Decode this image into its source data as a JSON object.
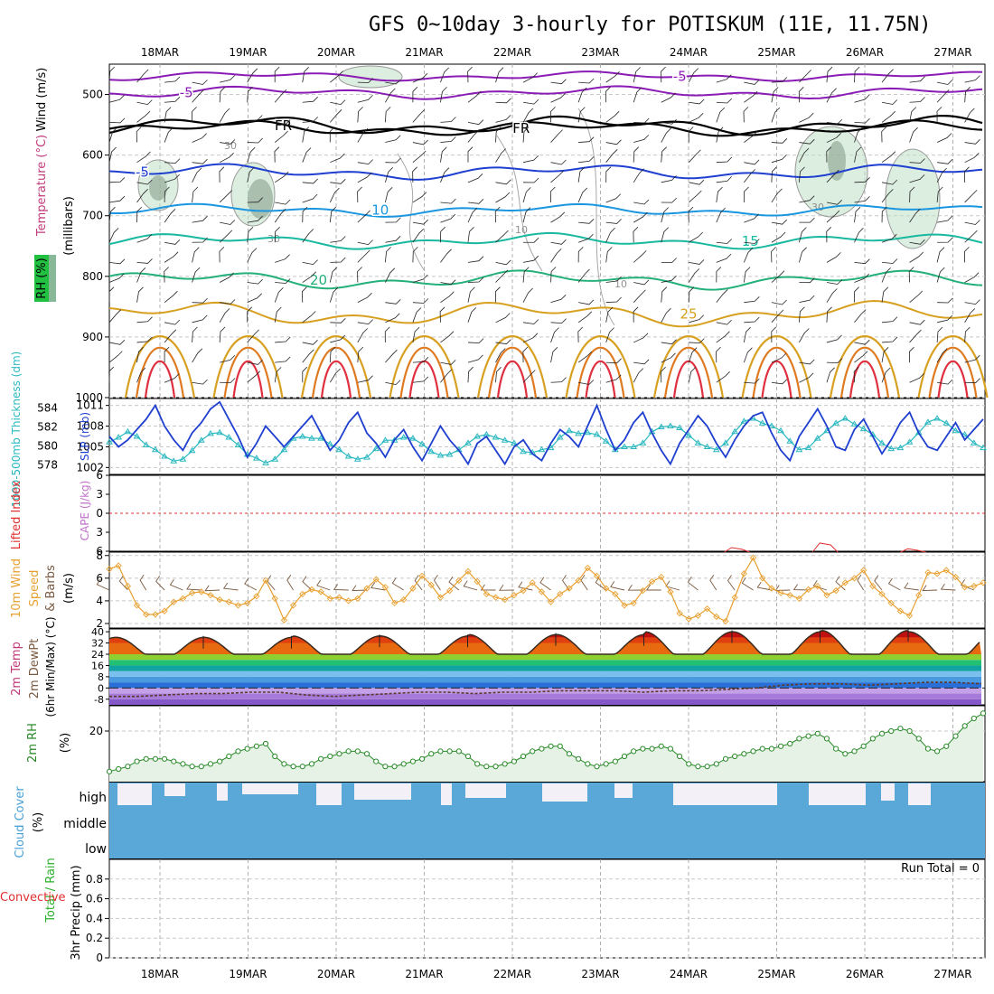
{
  "chart_data": {
    "type": "meteogram",
    "title": "GFS 0~10day 3-hourly for POTISKUM (11E, 11.75N)",
    "dates": [
      "18MAR",
      "19MAR",
      "20MAR",
      "21MAR",
      "22MAR",
      "23MAR",
      "24MAR",
      "25MAR",
      "26MAR",
      "27MAR"
    ],
    "panels": {
      "upper": {
        "ylabel_parts": [
          "Wind (m/s)",
          "Temperature (°C)",
          "RH (%)"
        ],
        "ylabel_unit": "(millibars)",
        "pressure_ticks": [
          500,
          600,
          700,
          800,
          900,
          1000
        ],
        "ylim": [
          450,
          1000
        ],
        "temperature_contours": [
          {
            "label": "-5",
            "base_p": 497,
            "amp": 4,
            "color": "#8a1bb5",
            "label_date": 0.3
          },
          {
            "label": "-5",
            "base_p": 470,
            "amp": 3,
            "color": "#8a1bb5",
            "label_date": 5.9
          },
          {
            "label": "FR",
            "base_p": 551,
            "amp": 6,
            "color": "#000000",
            "label_date": 1.4
          },
          {
            "label": "FR",
            "base_p": 556,
            "amp": 5,
            "color": "#000000",
            "label_date": 4.1
          },
          {
            "label": "-5",
            "base_p": 628,
            "amp": 5,
            "color": "#1f3fd0",
            "label_date": -0.2
          },
          {
            "label": "10",
            "base_p": 691,
            "amp": 4,
            "color": "#1a96e0",
            "label_date": 2.5
          },
          {
            "label": "15",
            "base_p": 742,
            "amp": 5,
            "color": "#19b8a0",
            "label_date": 6.7
          },
          {
            "label": "20",
            "base_p": 806,
            "amp": 6,
            "color": "#24b07a",
            "label_date": 1.8
          },
          {
            "label": "25",
            "base_p": 862,
            "amp": 8,
            "color": "#d8a020",
            "label_date": 6.0
          }
        ],
        "rh_labels": [
          "30",
          "30",
          "30",
          "10",
          "10"
        ]
      },
      "thickness_slp": {
        "ylabel_left": "1000-500mb Thickness (dm)",
        "ylabel_right": "SLP (mb)",
        "thickness_ticks": [
          578,
          580,
          582,
          584
        ],
        "slp_ticks": [
          1002,
          1005,
          1008,
          1011
        ],
        "thickness_ylim": [
          577,
          585
        ],
        "slp_ylim": [
          1001,
          1012
        ],
        "thickness_series": [
          580.4,
          580.9,
          581.5,
          581.0,
          580.1,
          579.6,
          578.9,
          578.4,
          578.6,
          579.5,
          580.6,
          581.3,
          581.4,
          580.9,
          580.1,
          579.1,
          578.7,
          578.2,
          578.6,
          579.6,
          580.8,
          581.0,
          580.8,
          580.8,
          580.2,
          579.6,
          578.9,
          578.6,
          578.8,
          579.7,
          580.6,
          580.6,
          580.9,
          580.8,
          580.2,
          579.4,
          579.0,
          579.1,
          579.6,
          580.3,
          581.0,
          581.2,
          580.9,
          580.6,
          580.3,
          579.4,
          579.3,
          579.6,
          579.8,
          580.9,
          581.6,
          581.3,
          581.4,
          581.2,
          580.5,
          579.6,
          579.9,
          579.9,
          580.3,
          581.5,
          582.0,
          582.1,
          581.9,
          581.1,
          580.3,
          579.9,
          579.6,
          580.3,
          581.5,
          582.6,
          582.9,
          582.4,
          582.1,
          581.6,
          580.5,
          579.6,
          579.8,
          580.8,
          581.6,
          582.4,
          582.9,
          582.3,
          581.8,
          581.2,
          580.3,
          579.7,
          579.8,
          580.4,
          581.4,
          582.5,
          582.9,
          582.4,
          581.6,
          581.2,
          580.3,
          579.8
        ],
        "slp_series": [
          1006.5,
          1005.0,
          1006.0,
          1007.5,
          1009.0,
          1011.0,
          1008.0,
          1006.0,
          1004.5,
          1007.0,
          1008.5,
          1010.5,
          1011.5,
          1009.0,
          1006.5,
          1003.5,
          1005.5,
          1008.0,
          1006.5,
          1005.0,
          1006.5,
          1008.0,
          1009.5,
          1007.0,
          1004.5,
          1006.0,
          1008.5,
          1010.0,
          1007.0,
          1005.5,
          1003.5,
          1006.0,
          1007.5,
          1005.0,
          1003.0,
          1005.5,
          1008.0,
          1006.0,
          1004.5,
          1002.5,
          1005.5,
          1006.5,
          1004.5,
          1002.5,
          1005.0,
          1006.0,
          1004.0,
          1003.0,
          1005.5,
          1007.5,
          1006.5,
          1005.0,
          1008.0,
          1011.0,
          1007.5,
          1004.5,
          1006.0,
          1008.5,
          1010.0,
          1007.0,
          1004.5,
          1002.5,
          1005.5,
          1007.5,
          1009.5,
          1008.0,
          1005.5,
          1003.5,
          1006.0,
          1008.0,
          1009.5,
          1010.0,
          1007.0,
          1004.5,
          1003.0,
          1006.5,
          1008.5,
          1010.5,
          1008.0,
          1005.0,
          1004.5,
          1007.5,
          1009.0,
          1006.5,
          1004.0,
          1006.0,
          1008.5,
          1010.0,
          1007.0,
          1005.0,
          1004.5,
          1006.5,
          1008.5,
          1006.0,
          1007.5,
          1009.0
        ]
      },
      "li_cape": {
        "ylabel_left": "Lifted Index",
        "ylabel_right": "CAPE (J/kg)",
        "ticks": [
          -6,
          -3,
          0,
          3,
          6
        ],
        "ylim": [
          -6,
          6
        ],
        "cape_bumps": [
          {
            "date": 6.55,
            "value": 8.7
          },
          {
            "date": 7.55,
            "value": 9.1
          },
          {
            "date": 8.55,
            "value": 8.6
          }
        ]
      },
      "wind10m": {
        "ylabel_parts": [
          "10m Wind",
          "Speed",
          "& Barbs"
        ],
        "ylabel_unit": "(m/s)",
        "ticks": [
          2,
          4,
          6,
          8
        ],
        "ylim": [
          1.6,
          8.3
        ],
        "speed_series": [
          6.8,
          7.1,
          5.3,
          3.6,
          2.8,
          2.8,
          3.1,
          3.9,
          4.2,
          4.7,
          4.8,
          4.5,
          4.1,
          3.9,
          3.6,
          3.8,
          4.4,
          5.8,
          4.2,
          2.3,
          3.6,
          4.6,
          5.0,
          4.8,
          4.2,
          4.3,
          4.0,
          4.2,
          5.1,
          5.9,
          5.2,
          3.8,
          4.1,
          5.1,
          6.2,
          5.4,
          4.3,
          4.9,
          5.8,
          6.6,
          5.7,
          4.6,
          4.3,
          4.1,
          4.5,
          4.9,
          5.6,
          4.8,
          3.9,
          4.6,
          5.1,
          5.8,
          6.9,
          6.2,
          5.1,
          4.6,
          3.6,
          3.8,
          4.9,
          5.7,
          6.1,
          4.8,
          2.9,
          2.4,
          2.7,
          3.3,
          2.6,
          2.2,
          4.3,
          6.4,
          7.8,
          6.0,
          5.1,
          4.7,
          4.5,
          4.2,
          5.0,
          5.3,
          4.5,
          4.9,
          5.6,
          6.0,
          6.7,
          5.3,
          4.6,
          3.8,
          3.1,
          2.7,
          4.5,
          6.5,
          6.4,
          6.7,
          6.1,
          5.2,
          5.3,
          5.6
        ]
      },
      "temp2m": {
        "ylabel_parts": [
          "2m Temp",
          "2m DewPt",
          "(6hr Min/Max) (°C)"
        ],
        "ticks": [
          -8,
          0,
          8,
          16,
          24,
          32,
          40
        ],
        "ylim": [
          -12,
          42
        ],
        "color_bands": [
          "#8458c8",
          "#a67ad8",
          "#c4a0e8",
          "#2a6fd8",
          "#4a9ae0",
          "#7ac0ee",
          "#11a2a2",
          "#22c070",
          "#8ed030",
          "#e8e020",
          "#f0b010",
          "#f08010",
          "#e04010",
          "#c01010"
        ],
        "band_edges": [
          -12,
          -8,
          -4,
          0,
          4,
          8,
          12,
          16,
          20,
          24,
          28,
          32,
          36,
          40,
          44
        ],
        "temp_min_daily": 24,
        "temp_max_series": [
          36,
          36,
          37,
          37,
          38,
          38,
          40,
          40,
          41,
          40
        ],
        "dewpt_series": [
          -6,
          -6,
          -5,
          -4,
          -4,
          -3,
          -3,
          -5,
          -6,
          -5,
          -4,
          -3,
          -3,
          -4,
          -3,
          -3,
          -2,
          -2,
          -2,
          -3,
          -2,
          -2,
          -1,
          0,
          2,
          3,
          3,
          2,
          3,
          4,
          4,
          3
        ]
      },
      "rh2m": {
        "ylabel": "2m RH",
        "ylabel_unit": "(%)",
        "ticks": [
          20
        ],
        "ylim": [
          0,
          30
        ],
        "series": [
          4,
          5,
          6,
          8,
          9,
          9,
          9,
          8,
          7,
          6,
          6,
          7,
          8,
          10,
          12,
          13,
          14,
          15,
          10,
          7,
          6,
          6,
          7,
          9,
          10,
          11,
          12,
          12,
          11,
          8,
          6,
          6,
          7,
          8,
          9,
          11,
          12,
          12,
          12,
          10,
          7,
          6,
          6,
          7,
          8,
          10,
          12,
          13,
          14,
          14,
          11,
          9,
          7,
          6,
          7,
          8,
          10,
          12,
          13,
          13,
          14,
          13,
          10,
          7,
          6,
          6,
          7,
          9,
          10,
          11,
          12,
          13,
          13,
          14,
          15,
          17,
          18,
          19,
          17,
          13,
          11,
          12,
          14,
          17,
          19,
          20,
          21,
          20,
          17,
          13,
          12,
          14,
          18,
          22,
          25,
          27
        ]
      },
      "cloud": {
        "ylabel": "Cloud Cover",
        "ylabel_unit": "(%)",
        "levels": [
          "high",
          "middle",
          "low"
        ]
      },
      "precip": {
        "ylabel_left": "Total / Rain",
        "ylabel_left2": "Convective",
        "ylabel_right": "3hr Precip (mm)",
        "ticks": [
          0,
          0.2,
          0.4,
          0.6,
          0.8
        ],
        "ylim": [
          0,
          1.0
        ],
        "run_total": "Run Total = 0"
      }
    }
  }
}
